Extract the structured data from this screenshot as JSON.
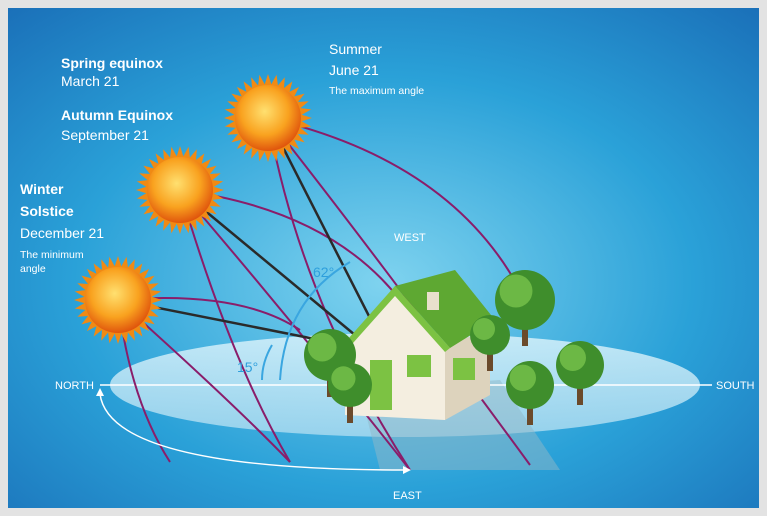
{
  "summer": {
    "title": "Summer",
    "date": "June 21",
    "note": "The maximum angle"
  },
  "equinox": {
    "spring": {
      "title": "Spring equinox",
      "date": "March 21"
    },
    "autumn": {
      "title": "Autumn Equinox",
      "date": "September 21"
    }
  },
  "winter": {
    "title_lines": [
      "Winter",
      "Solstice"
    ],
    "date": "December 21",
    "note_lines": [
      "The minimum",
      "angle"
    ]
  },
  "angles": {
    "max": "62°",
    "min": "15°"
  },
  "compass": {
    "west": "WEST",
    "north": "NORTH",
    "south": "SOUTH",
    "east": "EAST"
  }
}
